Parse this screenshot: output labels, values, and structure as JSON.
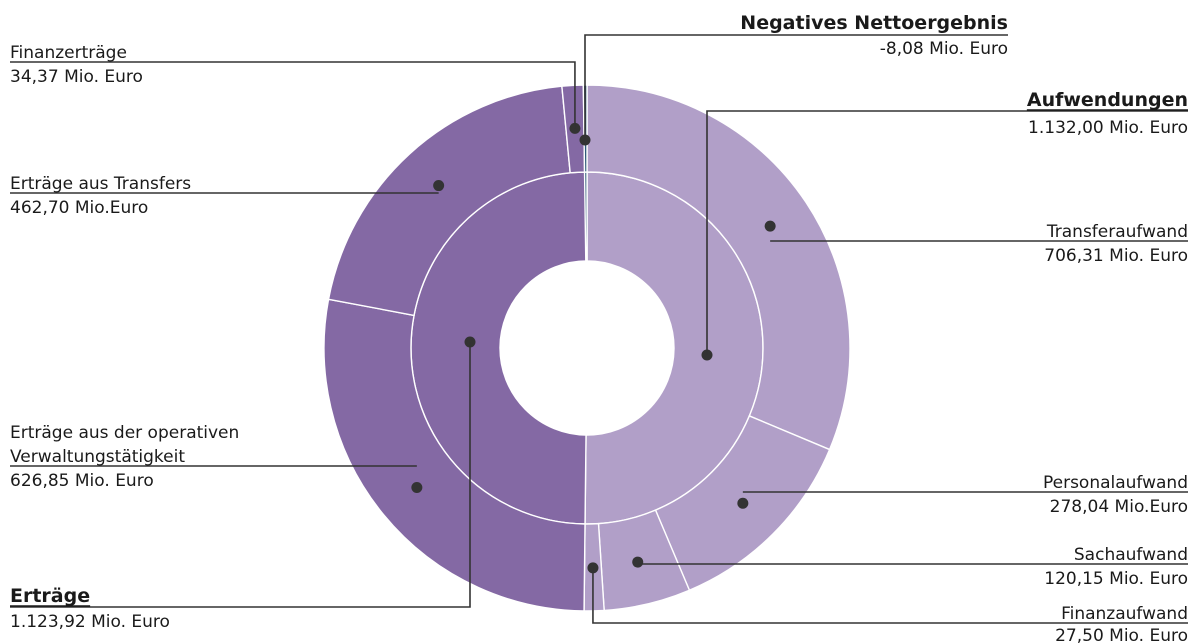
{
  "chart_data": {
    "type": "sunburst",
    "colors": {
      "ertraege": "#8469a4",
      "aufwendungen": "#b19fc8",
      "nettoergebnis": "#2e5a78",
      "separator": "#ffffff",
      "leader": "#333333",
      "dot": "#333333"
    },
    "inner_ring": [
      {
        "key": "aufwendungen",
        "name": "Aufwendungen",
        "value": 1132.0,
        "value_label": "1.132,00 Mio. Euro",
        "bold": true
      },
      {
        "key": "ertraege",
        "name": "Erträge",
        "value": 1123.92,
        "value_label": "1.123,92 Mio. Euro",
        "bold": true
      },
      {
        "key": "nettoergebnis",
        "name": "Negatives Nettoergebnis",
        "value": 8.08,
        "value_label": "-8,08  Mio. Euro",
        "bold": true
      }
    ],
    "outer_ring": [
      {
        "parent": "aufwendungen",
        "name": "Transferaufwand",
        "value": 706.31,
        "value_label": "706,31 Mio. Euro"
      },
      {
        "parent": "aufwendungen",
        "name": "Personalaufwand",
        "value": 278.04,
        "value_label": "278,04 Mio.Euro"
      },
      {
        "parent": "aufwendungen",
        "name": "Sachaufwand",
        "value": 120.15,
        "value_label": "120,15 Mio. Euro"
      },
      {
        "parent": "aufwendungen",
        "name": "Finanzaufwand",
        "value": 27.5,
        "value_label": "27,50 Mio. Euro"
      },
      {
        "parent": "ertraege",
        "name": "Erträge aus der operativen Verwaltungstätigkeit",
        "value": 626.85,
        "value_label": "626,85 Mio. Euro"
      },
      {
        "parent": "ertraege",
        "name": "Erträge aus Transfers",
        "value": 462.7,
        "value_label": "462,70 Mio.Euro"
      },
      {
        "parent": "ertraege",
        "name": "Finanzerträge",
        "value": 34.37,
        "value_label": "34,37 Mio. Euro"
      },
      {
        "parent": "nettoergebnis",
        "name": "Negatives Nettoergebnis",
        "value": 8.08,
        "value_label": ""
      }
    ]
  }
}
